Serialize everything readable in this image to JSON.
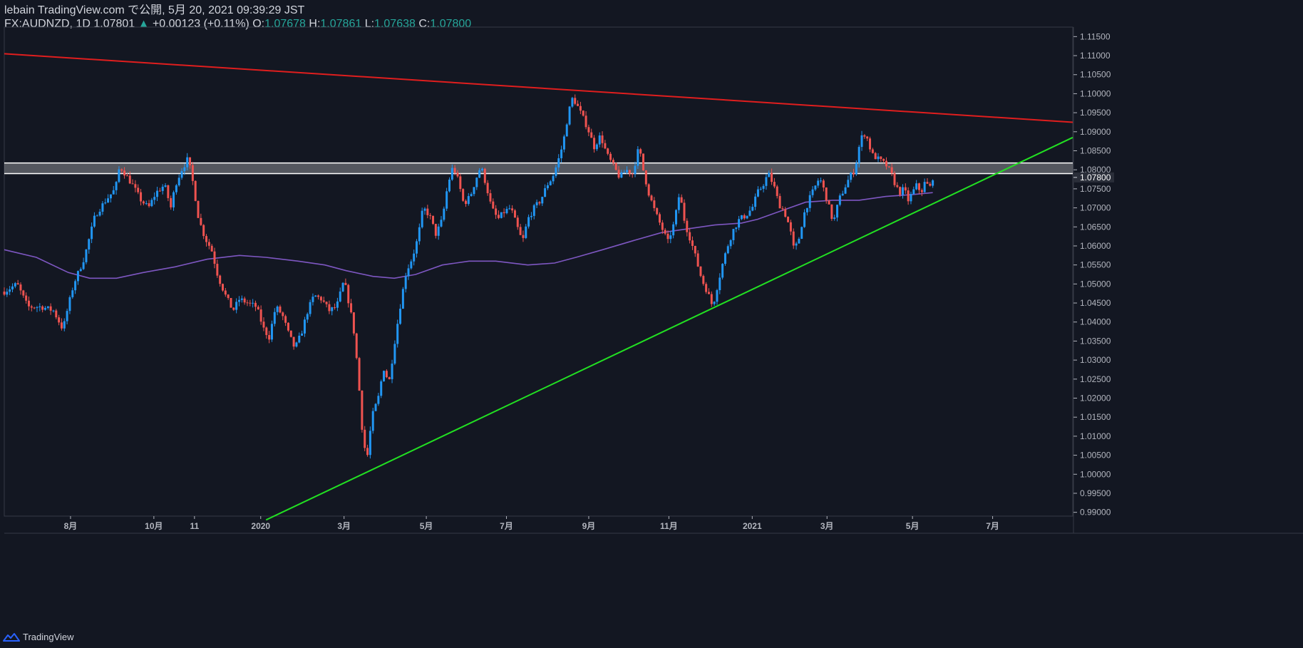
{
  "header": {
    "line1": "lebain TradingView.com で公開, 5月 20, 2021 09:39:29 JST",
    "symbol": "FX:AUDNZD, 1D",
    "last": "1.07801",
    "change": "+0.00123 (+0.11%)",
    "o_label": "O:",
    "o_value": "1.07678",
    "h_label": "H:",
    "h_value": "1.07861",
    "l_label": "L:",
    "l_value": "1.07638",
    "c_label": "C:",
    "c_value": "1.07800"
  },
  "footer": {
    "brand": "TradingView"
  },
  "colors": {
    "background": "#131722",
    "up": "#2196f3",
    "down": "#ef5350",
    "ma": "#7e57c2",
    "resistance": "#e01e1e",
    "support": "#22e022",
    "zone": "#ffffff"
  },
  "chart_data": {
    "type": "candlestick",
    "symbol": "FX:AUDNZD",
    "interval": "1D",
    "ylim": [
      0.989,
      1.1175
    ],
    "y_ticks": [
      "0.99000",
      "0.99500",
      "1.00000",
      "1.00500",
      "1.01000",
      "1.01500",
      "1.02000",
      "1.02500",
      "1.03000",
      "1.03500",
      "1.04000",
      "1.04500",
      "1.05000",
      "1.05500",
      "1.06000",
      "1.06500",
      "1.07000",
      "1.07500",
      "1.08000",
      "1.08500",
      "1.09000",
      "1.09500",
      "1.10000",
      "1.10500",
      "1.11000",
      "1.11500"
    ],
    "x_ticks": [
      "8月",
      "10月",
      "11",
      "2020",
      "3月",
      "5月",
      "7月",
      "9月",
      "11月",
      "2021",
      "3月",
      "5月",
      "7月"
    ],
    "x_tick_times": [
      0.062,
      0.14,
      0.178,
      0.24,
      0.318,
      0.395,
      0.47,
      0.547,
      0.622,
      0.7,
      0.77,
      0.85,
      0.925
    ],
    "current_price_label": "1.07800",
    "price_path": [
      [
        0.0,
        1.048
      ],
      [
        0.012,
        1.05
      ],
      [
        0.022,
        1.044
      ],
      [
        0.035,
        1.044
      ],
      [
        0.046,
        1.043
      ],
      [
        0.055,
        1.038
      ],
      [
        0.058,
        1.042
      ],
      [
        0.065,
        1.05
      ],
      [
        0.075,
        1.057
      ],
      [
        0.085,
        1.068
      ],
      [
        0.095,
        1.072
      ],
      [
        0.104,
        1.075
      ],
      [
        0.108,
        1.081
      ],
      [
        0.113,
        1.079
      ],
      [
        0.12,
        1.076
      ],
      [
        0.128,
        1.072
      ],
      [
        0.135,
        1.07
      ],
      [
        0.142,
        1.074
      ],
      [
        0.15,
        1.076
      ],
      [
        0.156,
        1.07
      ],
      [
        0.16,
        1.076
      ],
      [
        0.166,
        1.08
      ],
      [
        0.172,
        1.083
      ],
      [
        0.177,
        1.076
      ],
      [
        0.182,
        1.067
      ],
      [
        0.188,
        1.062
      ],
      [
        0.194,
        1.059
      ],
      [
        0.2,
        1.052
      ],
      [
        0.207,
        1.047
      ],
      [
        0.214,
        1.043
      ],
      [
        0.22,
        1.046
      ],
      [
        0.228,
        1.045
      ],
      [
        0.236,
        1.044
      ],
      [
        0.243,
        1.038
      ],
      [
        0.248,
        1.036
      ],
      [
        0.254,
        1.044
      ],
      [
        0.26,
        1.042
      ],
      [
        0.266,
        1.037
      ],
      [
        0.272,
        1.033
      ],
      [
        0.278,
        1.037
      ],
      [
        0.284,
        1.043
      ],
      [
        0.29,
        1.047
      ],
      [
        0.297,
        1.046
      ],
      [
        0.304,
        1.043
      ],
      [
        0.311,
        1.044
      ],
      [
        0.318,
        1.051
      ],
      [
        0.324,
        1.043
      ],
      [
        0.328,
        1.036
      ],
      [
        0.332,
        1.023
      ],
      [
        0.336,
        1.008
      ],
      [
        0.34,
        1.005
      ],
      [
        0.344,
        1.015
      ],
      [
        0.35,
        1.02
      ],
      [
        0.355,
        1.028
      ],
      [
        0.36,
        1.024
      ],
      [
        0.366,
        1.036
      ],
      [
        0.371,
        1.045
      ],
      [
        0.376,
        1.053
      ],
      [
        0.382,
        1.057
      ],
      [
        0.387,
        1.062
      ],
      [
        0.392,
        1.07
      ],
      [
        0.398,
        1.068
      ],
      [
        0.404,
        1.063
      ],
      [
        0.41,
        1.067
      ],
      [
        0.415,
        1.076
      ],
      [
        0.42,
        1.081
      ],
      [
        0.425,
        1.077
      ],
      [
        0.43,
        1.071
      ],
      [
        0.436,
        1.073
      ],
      [
        0.442,
        1.078
      ],
      [
        0.446,
        1.081
      ],
      [
        0.451,
        1.076
      ],
      [
        0.456,
        1.07
      ],
      [
        0.462,
        1.067
      ],
      [
        0.468,
        1.069
      ],
      [
        0.474,
        1.07
      ],
      [
        0.48,
        1.065
      ],
      [
        0.485,
        1.061
      ],
      [
        0.49,
        1.067
      ],
      [
        0.496,
        1.07
      ],
      [
        0.502,
        1.072
      ],
      [
        0.508,
        1.076
      ],
      [
        0.513,
        1.078
      ],
      [
        0.518,
        1.082
      ],
      [
        0.523,
        1.087
      ],
      [
        0.528,
        1.095
      ],
      [
        0.532,
        1.099
      ],
      [
        0.536,
        1.097
      ],
      [
        0.541,
        1.094
      ],
      [
        0.546,
        1.091
      ],
      [
        0.552,
        1.086
      ],
      [
        0.558,
        1.089
      ],
      [
        0.564,
        1.084
      ],
      [
        0.57,
        1.081
      ],
      [
        0.576,
        1.078
      ],
      [
        0.582,
        1.08
      ],
      [
        0.588,
        1.079
      ],
      [
        0.594,
        1.086
      ],
      [
        0.598,
        1.08
      ],
      [
        0.603,
        1.074
      ],
      [
        0.609,
        1.069
      ],
      [
        0.615,
        1.065
      ],
      [
        0.621,
        1.061
      ],
      [
        0.627,
        1.066
      ],
      [
        0.632,
        1.074
      ],
      [
        0.637,
        1.066
      ],
      [
        0.643,
        1.061
      ],
      [
        0.648,
        1.056
      ],
      [
        0.653,
        1.051
      ],
      [
        0.658,
        1.048
      ],
      [
        0.663,
        1.044
      ],
      [
        0.667,
        1.049
      ],
      [
        0.672,
        1.055
      ],
      [
        0.677,
        1.06
      ],
      [
        0.682,
        1.064
      ],
      [
        0.688,
        1.067
      ],
      [
        0.694,
        1.068
      ],
      [
        0.7,
        1.07
      ],
      [
        0.705,
        1.074
      ],
      [
        0.71,
        1.076
      ],
      [
        0.715,
        1.079
      ],
      [
        0.72,
        1.076
      ],
      [
        0.725,
        1.071
      ],
      [
        0.73,
        1.069
      ],
      [
        0.735,
        1.065
      ],
      [
        0.739,
        1.059
      ],
      [
        0.743,
        1.061
      ],
      [
        0.748,
        1.068
      ],
      [
        0.753,
        1.072
      ],
      [
        0.758,
        1.075
      ],
      [
        0.763,
        1.078
      ],
      [
        0.768,
        1.074
      ],
      [
        0.772,
        1.07
      ],
      [
        0.776,
        1.066
      ],
      [
        0.781,
        1.072
      ],
      [
        0.786,
        1.075
      ],
      [
        0.791,
        1.078
      ],
      [
        0.796,
        1.08
      ],
      [
        0.8,
        1.086
      ],
      [
        0.804,
        1.09
      ],
      [
        0.808,
        1.088
      ],
      [
        0.812,
        1.084
      ],
      [
        0.817,
        1.083
      ],
      [
        0.822,
        1.082
      ],
      [
        0.826,
        1.081
      ],
      [
        0.83,
        1.079
      ],
      [
        0.834,
        1.076
      ],
      [
        0.838,
        1.074
      ],
      [
        0.842,
        1.075
      ],
      [
        0.846,
        1.072
      ],
      [
        0.85,
        1.074
      ],
      [
        0.854,
        1.076
      ],
      [
        0.858,
        1.074
      ],
      [
        0.862,
        1.077
      ],
      [
        0.866,
        1.075
      ],
      [
        0.869,
        1.078
      ]
    ],
    "moving_average": [
      [
        0.0,
        1.059
      ],
      [
        0.03,
        1.057
      ],
      [
        0.06,
        1.053
      ],
      [
        0.08,
        1.0515
      ],
      [
        0.105,
        1.0515
      ],
      [
        0.13,
        1.053
      ],
      [
        0.16,
        1.0545
      ],
      [
        0.19,
        1.0565
      ],
      [
        0.22,
        1.0575
      ],
      [
        0.245,
        1.057
      ],
      [
        0.275,
        1.056
      ],
      [
        0.3,
        1.055
      ],
      [
        0.32,
        1.0535
      ],
      [
        0.345,
        1.052
      ],
      [
        0.365,
        1.0515
      ],
      [
        0.385,
        1.0525
      ],
      [
        0.41,
        1.055
      ],
      [
        0.435,
        1.056
      ],
      [
        0.46,
        1.056
      ],
      [
        0.49,
        1.055
      ],
      [
        0.515,
        1.0555
      ],
      [
        0.535,
        1.057
      ],
      [
        0.56,
        1.059
      ],
      [
        0.59,
        1.0615
      ],
      [
        0.615,
        1.0635
      ],
      [
        0.64,
        1.0645
      ],
      [
        0.665,
        1.0655
      ],
      [
        0.69,
        1.066
      ],
      [
        0.705,
        1.067
      ],
      [
        0.725,
        1.069
      ],
      [
        0.75,
        1.0715
      ],
      [
        0.775,
        1.072
      ],
      [
        0.8,
        1.072
      ],
      [
        0.825,
        1.073
      ],
      [
        0.85,
        1.0735
      ],
      [
        0.869,
        1.074
      ]
    ],
    "resistance_line": [
      [
        0.0,
        1.1105
      ],
      [
        1.0,
        1.0925
      ]
    ],
    "support_line": [
      [
        0.245,
        0.988
      ],
      [
        1.0,
        1.0885
      ]
    ],
    "zone": [
      1.079,
      1.0818
    ]
  }
}
